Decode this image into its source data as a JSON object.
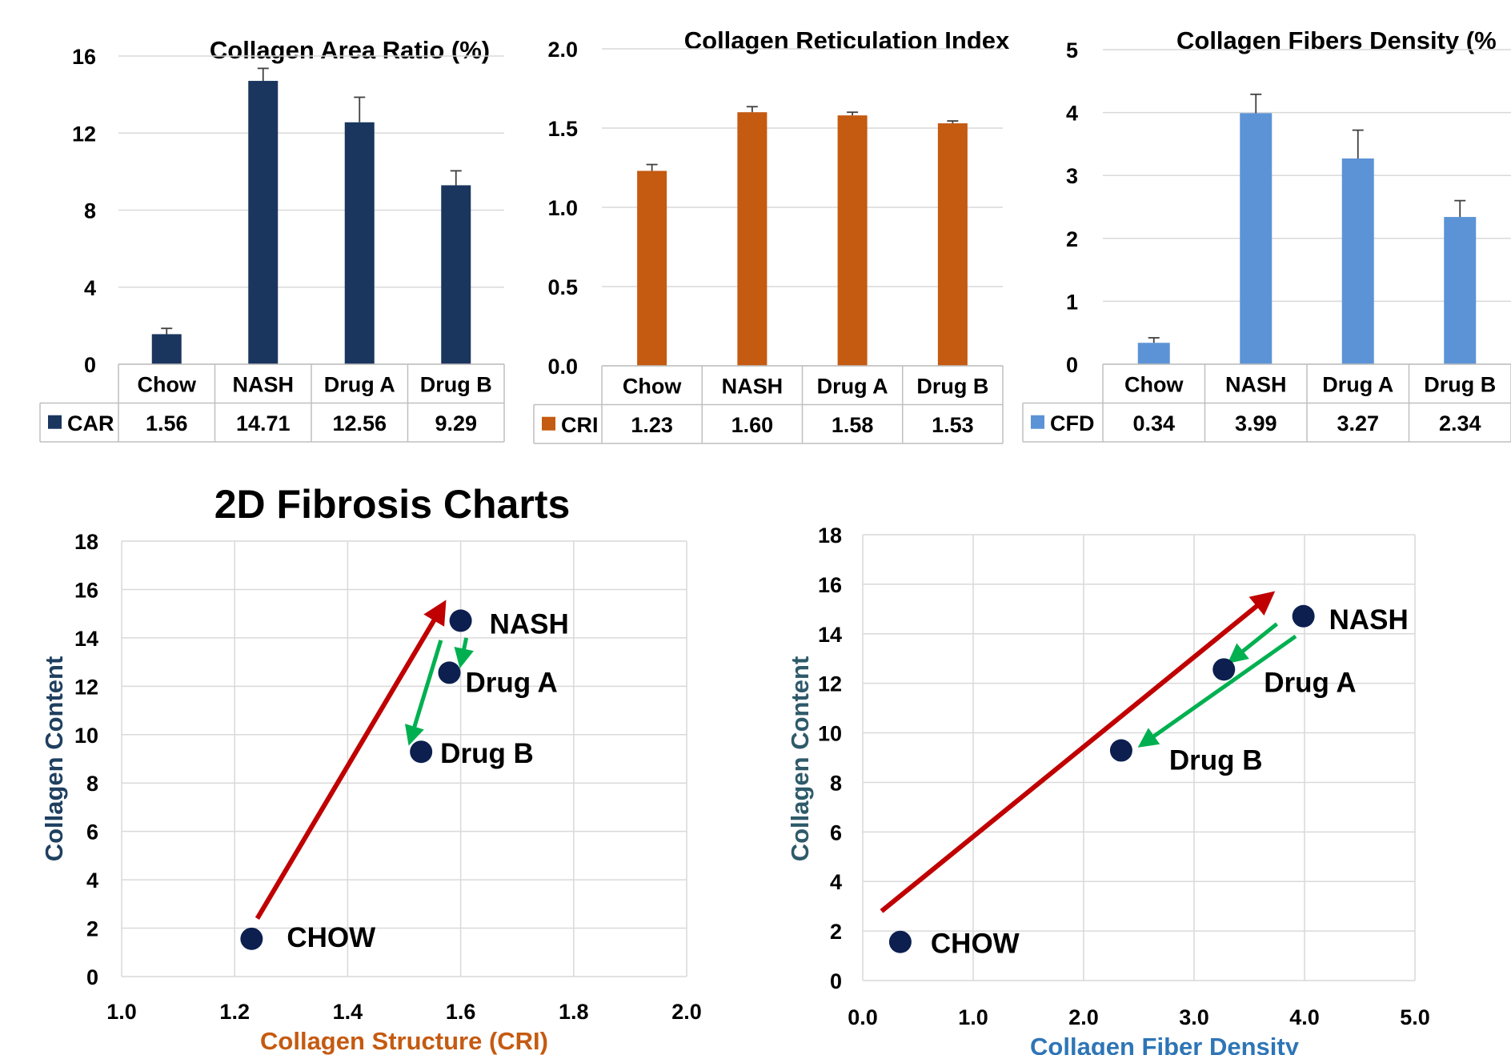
{
  "section_title": "2D Fibrosis Charts",
  "chart_data": [
    {
      "type": "bar",
      "title": "Collagen Area Ratio (%)",
      "categories": [
        "Chow",
        "NASH",
        "Drug A",
        "Drug B"
      ],
      "series": [
        {
          "name": "CAR",
          "values": [
            1.56,
            14.71,
            12.56,
            9.29
          ],
          "errors": [
            0.3,
            0.65,
            1.3,
            0.75
          ]
        }
      ],
      "table_values": [
        "1.56",
        "14.71",
        "12.56",
        "9.29"
      ],
      "ylim": [
        0,
        16
      ],
      "yticks": [
        0,
        4,
        8,
        12,
        16
      ],
      "ytick_labels": [
        "0",
        "4",
        "8",
        "12",
        "16"
      ],
      "grid": true,
      "colors": {
        "bar": "#1a365f"
      }
    },
    {
      "type": "bar",
      "title": "Collagen Reticulation Index",
      "categories": [
        "Chow",
        "NASH",
        "Drug A",
        "Drug B"
      ],
      "series": [
        {
          "name": "CRI",
          "values": [
            1.23,
            1.6,
            1.58,
            1.53
          ],
          "errors": [
            0.04,
            0.035,
            0.02,
            0.015
          ]
        }
      ],
      "table_values": [
        "1.23",
        "1.60",
        "1.58",
        "1.53"
      ],
      "ylim": [
        0,
        2
      ],
      "yticks": [
        0,
        0.5,
        1,
        1.5,
        2
      ],
      "ytick_labels": [
        "0.0",
        "0.5",
        "1.0",
        "1.5",
        "2.0"
      ],
      "grid": true,
      "colors": {
        "bar": "#c55a11"
      }
    },
    {
      "type": "bar",
      "title": "Collagen Fibers Density (%",
      "categories": [
        "Chow",
        "NASH",
        "Drug A",
        "Drug B"
      ],
      "series": [
        {
          "name": "CFD",
          "values": [
            0.34,
            3.99,
            3.27,
            2.34
          ],
          "errors": [
            0.08,
            0.3,
            0.45,
            0.26
          ]
        }
      ],
      "table_values": [
        "0.34",
        "3.99",
        "3.27",
        "2.34"
      ],
      "ylim": [
        0,
        5
      ],
      "yticks": [
        0,
        1,
        2,
        3,
        4,
        5
      ],
      "ytick_labels": [
        "0",
        "1",
        "2",
        "3",
        "4",
        "5"
      ],
      "grid": true,
      "colors": {
        "bar": "#5b93d6"
      }
    },
    {
      "type": "scatter",
      "xlabel": "Collagen Structure (CRI)",
      "ylabel": "Collagen Content",
      "xlim": [
        1.0,
        2.0
      ],
      "ylim": [
        0,
        18
      ],
      "xticks": [
        1.0,
        1.2,
        1.4,
        1.6,
        1.8,
        2.0
      ],
      "xtick_labels": [
        "1.0",
        "1.2",
        "1.4",
        "1.6",
        "1.8",
        "2.0"
      ],
      "yticks": [
        0,
        2,
        4,
        6,
        8,
        10,
        12,
        14,
        16,
        18
      ],
      "ytick_labels": [
        "0",
        "2",
        "4",
        "6",
        "8",
        "10",
        "12",
        "14",
        "16",
        "18"
      ],
      "grid": true,
      "points": [
        {
          "label": "CHOW",
          "x": 1.23,
          "y": 1.56
        },
        {
          "label": "NASH",
          "x": 1.6,
          "y": 14.71
        },
        {
          "label": "Drug A",
          "x": 1.58,
          "y": 12.56
        },
        {
          "label": "Drug B",
          "x": 1.53,
          "y": 9.29
        }
      ],
      "arrows": [
        {
          "from": [
            1.24,
            2.4
          ],
          "to": [
            1.57,
            15.4
          ],
          "color": "#c00000"
        },
        {
          "from": [
            1.61,
            14.0
          ],
          "to": [
            1.6,
            12.9
          ],
          "color": "#00b050"
        },
        {
          "from": [
            1.565,
            13.9
          ],
          "to": [
            1.51,
            9.7
          ],
          "color": "#00b050"
        }
      ],
      "colors": {
        "point": "#0c1f4f",
        "xlabel": "#c55a11",
        "ylabel": "#1f3f5f"
      }
    },
    {
      "type": "scatter",
      "xlabel": "Collagen Fiber Density",
      "ylabel": "Collagen Content",
      "xlim": [
        0.0,
        5.0
      ],
      "ylim": [
        0,
        18
      ],
      "xticks": [
        0,
        1,
        2,
        3,
        4,
        5
      ],
      "xtick_labels": [
        "0.0",
        "1.0",
        "2.0",
        "3.0",
        "4.0",
        "5.0"
      ],
      "yticks": [
        0,
        2,
        4,
        6,
        8,
        10,
        12,
        14,
        16,
        18
      ],
      "ytick_labels": [
        "0",
        "2",
        "4",
        "6",
        "8",
        "10",
        "12",
        "14",
        "16",
        "18"
      ],
      "grid": true,
      "points": [
        {
          "label": "CHOW",
          "x": 0.34,
          "y": 1.56
        },
        {
          "label": "NASH",
          "x": 3.99,
          "y": 14.71
        },
        {
          "label": "Drug A",
          "x": 3.27,
          "y": 12.56
        },
        {
          "label": "Drug B",
          "x": 2.34,
          "y": 9.29
        }
      ],
      "arrows": [
        {
          "from": [
            0.17,
            2.8
          ],
          "to": [
            3.7,
            15.6
          ],
          "color": "#c00000"
        },
        {
          "from": [
            3.75,
            14.4
          ],
          "to": [
            3.33,
            12.9
          ],
          "color": "#00b050"
        },
        {
          "from": [
            3.92,
            13.9
          ],
          "to": [
            2.52,
            9.5
          ],
          "color": "#00b050"
        }
      ],
      "colors": {
        "point": "#0c1f4f",
        "xlabel": "#2e75b6",
        "ylabel": "#2e5a6a"
      }
    }
  ]
}
